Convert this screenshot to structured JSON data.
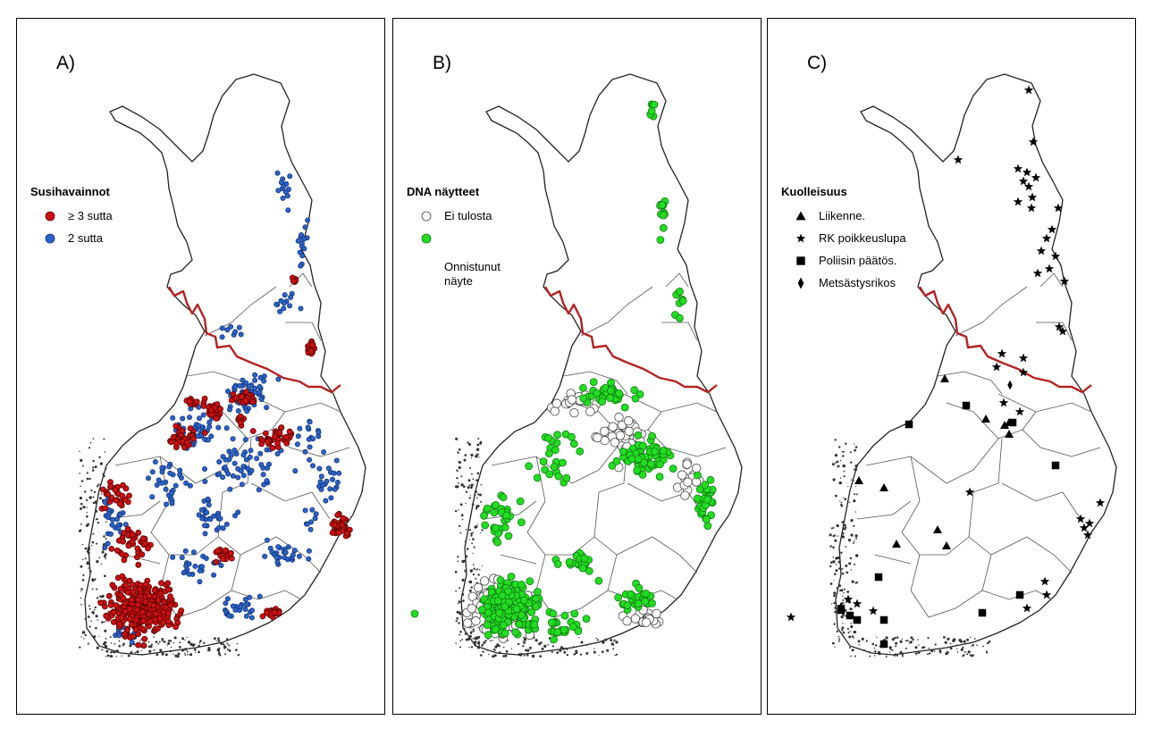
{
  "panels": [
    {
      "id": "a",
      "label": "A)",
      "legend_title": "Susihavainnot",
      "legend_items": [
        {
          "label": "≥ 3 sutta",
          "symbol": "dot",
          "fill": "#cc1111",
          "stroke": "#5a0000"
        },
        {
          "label": "2 sutta",
          "symbol": "dot",
          "fill": "#2c63c8",
          "stroke": "#12347a"
        }
      ]
    },
    {
      "id": "b",
      "label": "B)",
      "legend_title": "DNA näytteet",
      "legend_items": [
        {
          "label": "Ei tulosta",
          "symbol": "ring",
          "fill": "#ffffff",
          "stroke": "#444444"
        },
        {
          "label": "Onnistunut\nnäyte",
          "symbol": "dot",
          "fill": "#22dd22",
          "stroke": "#137a13"
        }
      ]
    },
    {
      "id": "c",
      "label": "C)",
      "legend_title": "Kuolleisuus",
      "legend_items": [
        {
          "label": "Liikenne.",
          "symbol": "triangle",
          "fill": "#000000",
          "stroke": "#000000"
        },
        {
          "label": "RK poikkeuslupa",
          "symbol": "star",
          "fill": "#000000",
          "stroke": "#000000"
        },
        {
          "label": "Poliisin päätös.",
          "symbol": "square",
          "fill": "#000000",
          "stroke": "#000000"
        },
        {
          "label": "Metsästysrikos",
          "symbol": "diamond",
          "fill": "#000000",
          "stroke": "#000000"
        }
      ]
    }
  ],
  "colors": {
    "outline": "#222222",
    "region_borders": "#555555",
    "reindeer_border": "#b22222",
    "archipelago": "#333333"
  }
}
